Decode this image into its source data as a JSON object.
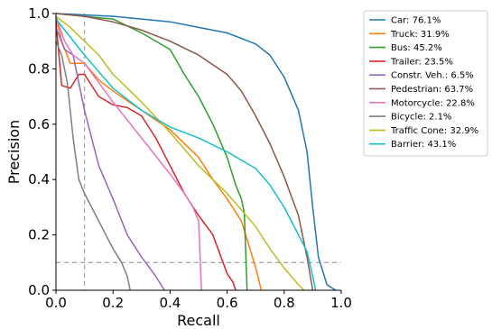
{
  "chart_data": {
    "type": "line",
    "xlabel": "Recall",
    "ylabel": "Precision",
    "xlim": [
      0,
      1
    ],
    "ylim": [
      0,
      1
    ],
    "xticks": [
      "0.0",
      "0.2",
      "0.4",
      "0.6",
      "0.8",
      "1.0"
    ],
    "yticks": [
      "0.0",
      "0.2",
      "0.4",
      "0.6",
      "0.8",
      "1.0"
    ],
    "grid": false,
    "legend_position": "outside-top-right",
    "reference_lines": {
      "recall": 0.1,
      "precision": 0.1,
      "style": "dashed",
      "color": "#aaaaaa"
    },
    "series": [
      {
        "name": "Car: 76.1%",
        "color": "#1f77b4",
        "points": [
          [
            0,
            1.0
          ],
          [
            0.1,
            0.995
          ],
          [
            0.2,
            0.99
          ],
          [
            0.3,
            0.98
          ],
          [
            0.4,
            0.97
          ],
          [
            0.5,
            0.95
          ],
          [
            0.6,
            0.93
          ],
          [
            0.7,
            0.89
          ],
          [
            0.75,
            0.85
          ],
          [
            0.8,
            0.77
          ],
          [
            0.85,
            0.65
          ],
          [
            0.88,
            0.5
          ],
          [
            0.9,
            0.3
          ],
          [
            0.92,
            0.12
          ],
          [
            0.95,
            0.02
          ],
          [
            0.98,
            0.0
          ]
        ]
      },
      {
        "name": "Truck: 31.9%",
        "color": "#ff7f0e",
        "points": [
          [
            0,
            0.99
          ],
          [
            0.02,
            0.9
          ],
          [
            0.05,
            0.82
          ],
          [
            0.1,
            0.82
          ],
          [
            0.15,
            0.76
          ],
          [
            0.2,
            0.72
          ],
          [
            0.3,
            0.65
          ],
          [
            0.4,
            0.58
          ],
          [
            0.5,
            0.48
          ],
          [
            0.55,
            0.4
          ],
          [
            0.6,
            0.33
          ],
          [
            0.65,
            0.25
          ],
          [
            0.68,
            0.15
          ],
          [
            0.7,
            0.08
          ],
          [
            0.72,
            0.0
          ]
        ]
      },
      {
        "name": "Bus: 45.2%",
        "color": "#2ca02c",
        "points": [
          [
            0,
            1.0
          ],
          [
            0.1,
            0.99
          ],
          [
            0.2,
            0.98
          ],
          [
            0.3,
            0.93
          ],
          [
            0.4,
            0.87
          ],
          [
            0.45,
            0.78
          ],
          [
            0.5,
            0.7
          ],
          [
            0.55,
            0.6
          ],
          [
            0.6,
            0.48
          ],
          [
            0.63,
            0.38
          ],
          [
            0.65,
            0.33
          ],
          [
            0.66,
            0.28
          ],
          [
            0.67,
            0.0
          ]
        ]
      },
      {
        "name": "Trailer: 23.5%",
        "color": "#d62728",
        "points": [
          [
            0,
            0.97
          ],
          [
            0.02,
            0.74
          ],
          [
            0.05,
            0.73
          ],
          [
            0.08,
            0.78
          ],
          [
            0.1,
            0.78
          ],
          [
            0.15,
            0.7
          ],
          [
            0.2,
            0.67
          ],
          [
            0.25,
            0.66
          ],
          [
            0.3,
            0.63
          ],
          [
            0.35,
            0.55
          ],
          [
            0.4,
            0.45
          ],
          [
            0.45,
            0.35
          ],
          [
            0.5,
            0.27
          ],
          [
            0.55,
            0.2
          ],
          [
            0.6,
            0.06
          ],
          [
            0.62,
            0.03
          ],
          [
            0.63,
            0.0
          ]
        ]
      },
      {
        "name": "Constr. Veh.: 6.5%",
        "color": "#9467bd",
        "points": [
          [
            0,
            0.95
          ],
          [
            0.03,
            0.87
          ],
          [
            0.06,
            0.85
          ],
          [
            0.08,
            0.75
          ],
          [
            0.1,
            0.65
          ],
          [
            0.15,
            0.45
          ],
          [
            0.2,
            0.33
          ],
          [
            0.25,
            0.2
          ],
          [
            0.3,
            0.12
          ],
          [
            0.35,
            0.05
          ],
          [
            0.38,
            0.0
          ]
        ]
      },
      {
        "name": "Pedestrian: 63.7%",
        "color": "#8c564b",
        "points": [
          [
            0,
            1.0
          ],
          [
            0.1,
            0.99
          ],
          [
            0.2,
            0.97
          ],
          [
            0.3,
            0.94
          ],
          [
            0.4,
            0.9
          ],
          [
            0.5,
            0.85
          ],
          [
            0.6,
            0.78
          ],
          [
            0.65,
            0.72
          ],
          [
            0.7,
            0.63
          ],
          [
            0.75,
            0.53
          ],
          [
            0.8,
            0.41
          ],
          [
            0.85,
            0.27
          ],
          [
            0.88,
            0.12
          ],
          [
            0.9,
            0.0
          ]
        ]
      },
      {
        "name": "Motorcycle: 22.8%",
        "color": "#e377c2",
        "points": [
          [
            0,
            0.99
          ],
          [
            0.03,
            0.9
          ],
          [
            0.06,
            0.85
          ],
          [
            0.1,
            0.82
          ],
          [
            0.15,
            0.75
          ],
          [
            0.2,
            0.68
          ],
          [
            0.3,
            0.55
          ],
          [
            0.4,
            0.42
          ],
          [
            0.45,
            0.35
          ],
          [
            0.48,
            0.3
          ],
          [
            0.5,
            0.25
          ],
          [
            0.51,
            0.0
          ]
        ]
      },
      {
        "name": "Bicycle: 2.1%",
        "color": "#7f7f7f",
        "points": [
          [
            0,
            0.9
          ],
          [
            0.02,
            0.85
          ],
          [
            0.04,
            0.75
          ],
          [
            0.06,
            0.55
          ],
          [
            0.08,
            0.4
          ],
          [
            0.1,
            0.35
          ],
          [
            0.15,
            0.25
          ],
          [
            0.2,
            0.15
          ],
          [
            0.23,
            0.1
          ],
          [
            0.25,
            0.05
          ],
          [
            0.26,
            0.0
          ]
        ]
      },
      {
        "name": "Traffic Cone: 32.9%",
        "color": "#bcbd22",
        "points": [
          [
            0,
            0.99
          ],
          [
            0.05,
            0.95
          ],
          [
            0.1,
            0.9
          ],
          [
            0.15,
            0.85
          ],
          [
            0.2,
            0.78
          ],
          [
            0.3,
            0.68
          ],
          [
            0.4,
            0.57
          ],
          [
            0.5,
            0.45
          ],
          [
            0.6,
            0.35
          ],
          [
            0.7,
            0.23
          ],
          [
            0.75,
            0.15
          ],
          [
            0.8,
            0.08
          ],
          [
            0.85,
            0.02
          ],
          [
            0.87,
            0.0
          ]
        ]
      },
      {
        "name": "Barrier: 43.1%",
        "color": "#17becf",
        "points": [
          [
            0,
            0.98
          ],
          [
            0.1,
            0.85
          ],
          [
            0.2,
            0.73
          ],
          [
            0.3,
            0.65
          ],
          [
            0.4,
            0.59
          ],
          [
            0.5,
            0.55
          ],
          [
            0.6,
            0.5
          ],
          [
            0.7,
            0.44
          ],
          [
            0.75,
            0.38
          ],
          [
            0.8,
            0.3
          ],
          [
            0.85,
            0.2
          ],
          [
            0.88,
            0.14
          ],
          [
            0.9,
            0.05
          ],
          [
            0.91,
            0.0
          ]
        ]
      }
    ]
  }
}
